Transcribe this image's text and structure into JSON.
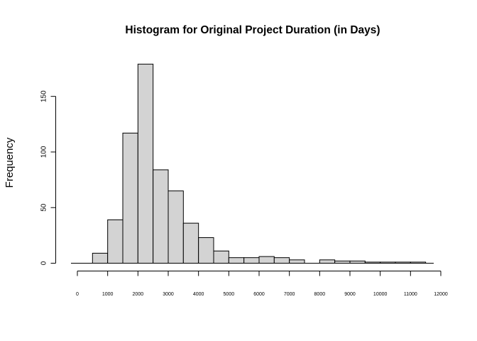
{
  "chart_data": {
    "type": "bar",
    "title": "Histogram for Original Project Duration (in Days)",
    "xlabel": "",
    "ylabel": "Frequency",
    "bins": [
      {
        "start": 0,
        "end": 500,
        "count": 0
      },
      {
        "start": 500,
        "end": 1000,
        "count": 9
      },
      {
        "start": 1000,
        "end": 1500,
        "count": 39
      },
      {
        "start": 1500,
        "end": 2000,
        "count": 117
      },
      {
        "start": 2000,
        "end": 2500,
        "count": 179
      },
      {
        "start": 2500,
        "end": 3000,
        "count": 84
      },
      {
        "start": 3000,
        "end": 3500,
        "count": 65
      },
      {
        "start": 3500,
        "end": 4000,
        "count": 36
      },
      {
        "start": 4000,
        "end": 4500,
        "count": 23
      },
      {
        "start": 4500,
        "end": 5000,
        "count": 11
      },
      {
        "start": 5000,
        "end": 5500,
        "count": 5
      },
      {
        "start": 5500,
        "end": 6000,
        "count": 5
      },
      {
        "start": 6000,
        "end": 6500,
        "count": 6
      },
      {
        "start": 6500,
        "end": 7000,
        "count": 5
      },
      {
        "start": 7000,
        "end": 7500,
        "count": 3
      },
      {
        "start": 7500,
        "end": 8000,
        "count": 0
      },
      {
        "start": 8000,
        "end": 8500,
        "count": 3
      },
      {
        "start": 8500,
        "end": 9000,
        "count": 2
      },
      {
        "start": 9000,
        "end": 9500,
        "count": 2
      },
      {
        "start": 9500,
        "end": 10000,
        "count": 1
      },
      {
        "start": 10000,
        "end": 10500,
        "count": 1
      },
      {
        "start": 10500,
        "end": 11000,
        "count": 1
      },
      {
        "start": 11000,
        "end": 11500,
        "count": 1
      },
      {
        "start": 11500,
        "end": 12000,
        "count": 0
      }
    ],
    "x_ticks": [
      0,
      1000,
      2000,
      3000,
      4000,
      5000,
      6000,
      7000,
      8000,
      9000,
      10000,
      11000,
      12000
    ],
    "y_ticks": [
      0,
      50,
      100,
      150
    ],
    "xlim": [
      0,
      12000
    ],
    "ylim": [
      0,
      179
    ],
    "grid": false,
    "legend": "none",
    "colors": {
      "bar_fill": "#d3d3d3",
      "bar_stroke": "#000000",
      "background": "#ffffff"
    }
  }
}
